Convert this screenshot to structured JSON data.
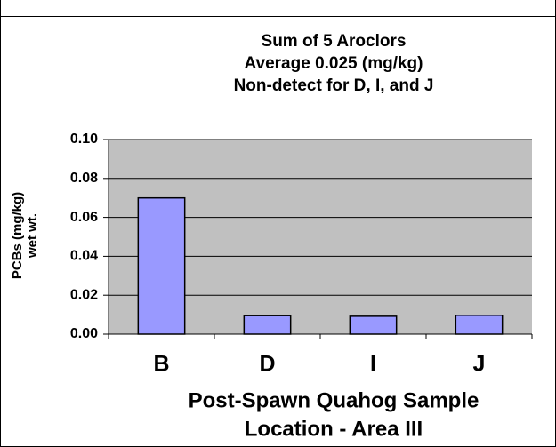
{
  "chart_data": {
    "type": "bar",
    "title": [
      "Sum of 5 Aroclors",
      "Average 0.025 (mg/kg)",
      "Non-detect for D, I, and J"
    ],
    "y_label": [
      "PCBs (mg/kg)",
      "wet wt."
    ],
    "x_label": [
      "Post-Spawn Quahog Sample",
      "Location - Area III"
    ],
    "categories": [
      "B",
      "D",
      "I",
      "J"
    ],
    "values": [
      0.07,
      0.0095,
      0.0092,
      0.0097
    ],
    "color": "#9999ff",
    "ylim": [
      0,
      0.1
    ],
    "yticks": [
      {
        "value": 0,
        "label": "0.00"
      },
      {
        "value": 0.02,
        "label": "0.02"
      },
      {
        "value": 0.04,
        "label": "0.04"
      },
      {
        "value": 0.06,
        "label": "0.06"
      },
      {
        "value": 0.08,
        "label": "0.08"
      },
      {
        "value": 0.1,
        "label": "0.10"
      }
    ],
    "grid": true
  }
}
